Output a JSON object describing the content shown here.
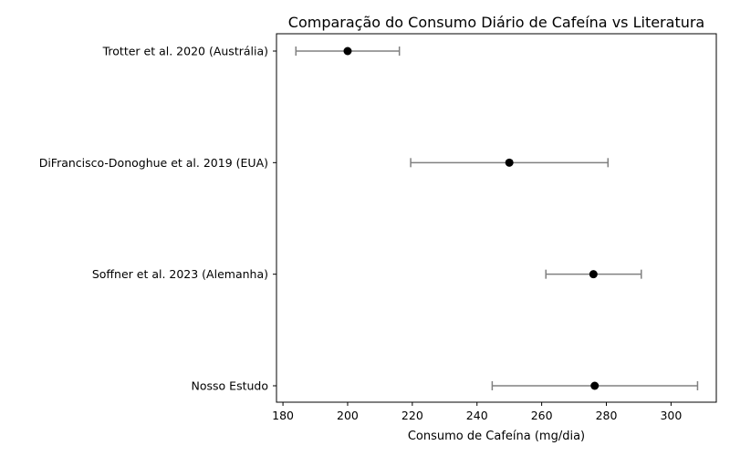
{
  "chart_data": {
    "type": "scatter",
    "title": "Comparação do Consumo Diário de Cafeína vs Literatura",
    "xlabel": "Consumo de Cafeína (mg/dia)",
    "ylabel": "",
    "xlim": [
      178,
      314
    ],
    "xticks": [
      180,
      200,
      220,
      240,
      260,
      280,
      300
    ],
    "grid": false,
    "legend": "none",
    "errorbar_color": "#808080",
    "marker_color": "#000000",
    "studies": [
      {
        "label": "Trotter et al. 2020 (Austrália)",
        "mean": 200,
        "lower": 184,
        "upper": 216
      },
      {
        "label": "DiFrancisco-Donoghue et al. 2019 (EUA)",
        "mean": 250,
        "lower": 219.5,
        "upper": 280.5
      },
      {
        "label": "Soffner et al. 2023 (Alemanha)",
        "mean": 276,
        "lower": 261.3,
        "upper": 290.8
      },
      {
        "label": "Nosso Estudo",
        "mean": 276.4,
        "lower": 244.7,
        "upper": 308.2
      }
    ]
  }
}
